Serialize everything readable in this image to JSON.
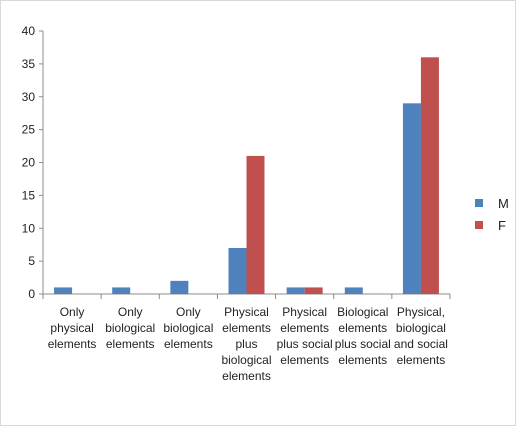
{
  "chart_data": {
    "type": "bar",
    "categories": [
      [
        "Only",
        "physical",
        "elements"
      ],
      [
        "Only",
        "biological",
        "elements"
      ],
      [
        "Only",
        "biological",
        "elements"
      ],
      [
        "Physical",
        "elements",
        "plus",
        "biological",
        "elements"
      ],
      [
        "Physical",
        "elements",
        "plus social",
        "elements"
      ],
      [
        "Biological",
        "elements",
        "plus social",
        "elements"
      ],
      [
        "Physical,",
        "biological",
        "and social",
        "elements"
      ]
    ],
    "series": [
      {
        "name": "M",
        "color": "#4f81bd",
        "values": [
          1,
          1,
          2,
          7,
          1,
          1,
          29
        ]
      },
      {
        "name": "F",
        "color": "#c0504d",
        "values": [
          0,
          0,
          0,
          21,
          1,
          0,
          36
        ]
      }
    ],
    "ylim": [
      0,
      40
    ],
    "yticks": [
      0,
      5,
      10,
      15,
      20,
      25,
      30,
      35,
      40
    ],
    "grid": false,
    "legend": "right",
    "title": "",
    "xlabel": "",
    "ylabel": ""
  }
}
